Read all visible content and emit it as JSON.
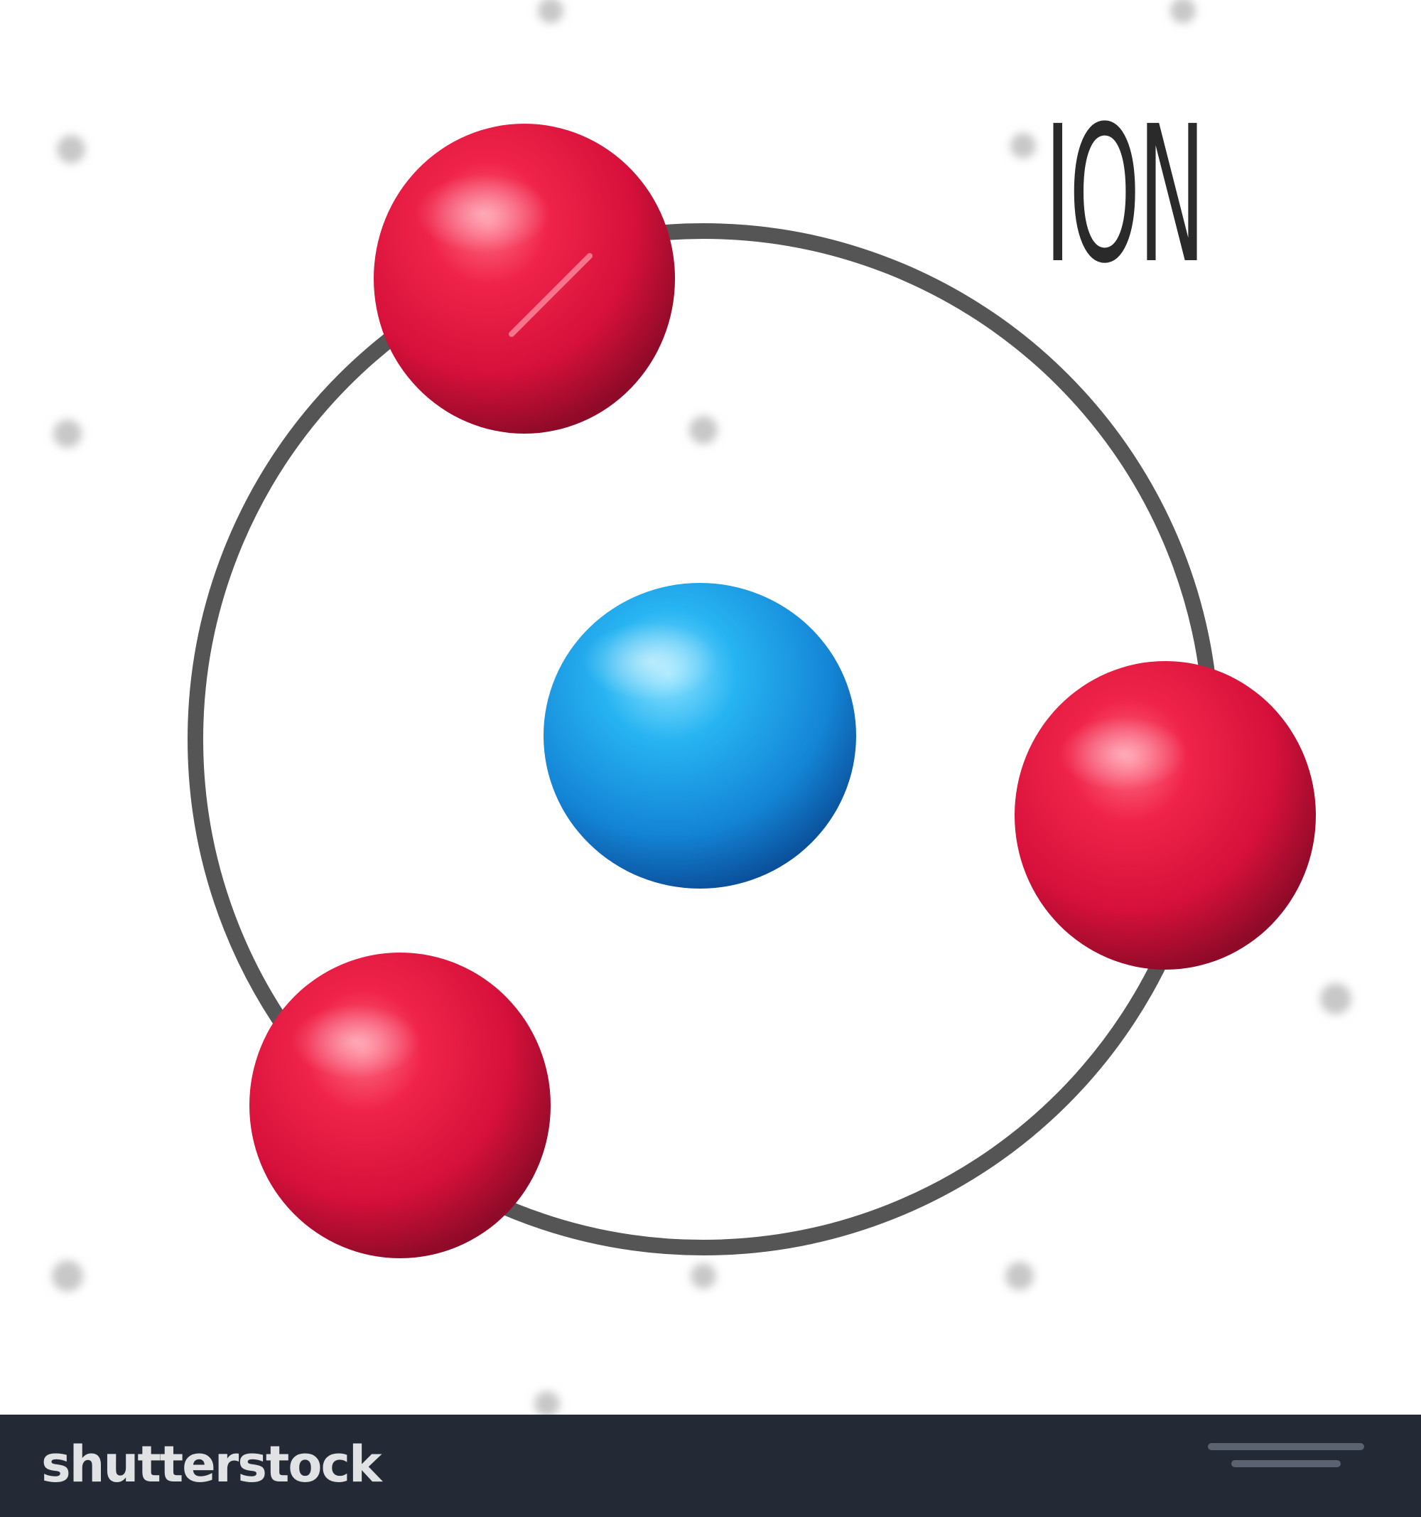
{
  "diagram": {
    "title": "ION",
    "orbit_color": "#555555",
    "nucleus_color": "#1e9be6",
    "electron_color": "#e0143c",
    "particles": [
      {
        "role": "nucleus",
        "name": "nucleus"
      },
      {
        "role": "electron",
        "name": "electron-top"
      },
      {
        "role": "electron",
        "name": "electron-right"
      },
      {
        "role": "electron",
        "name": "electron-bottom-left"
      }
    ]
  },
  "footer": {
    "brand": "shutterstock",
    "background": "#232a35"
  }
}
